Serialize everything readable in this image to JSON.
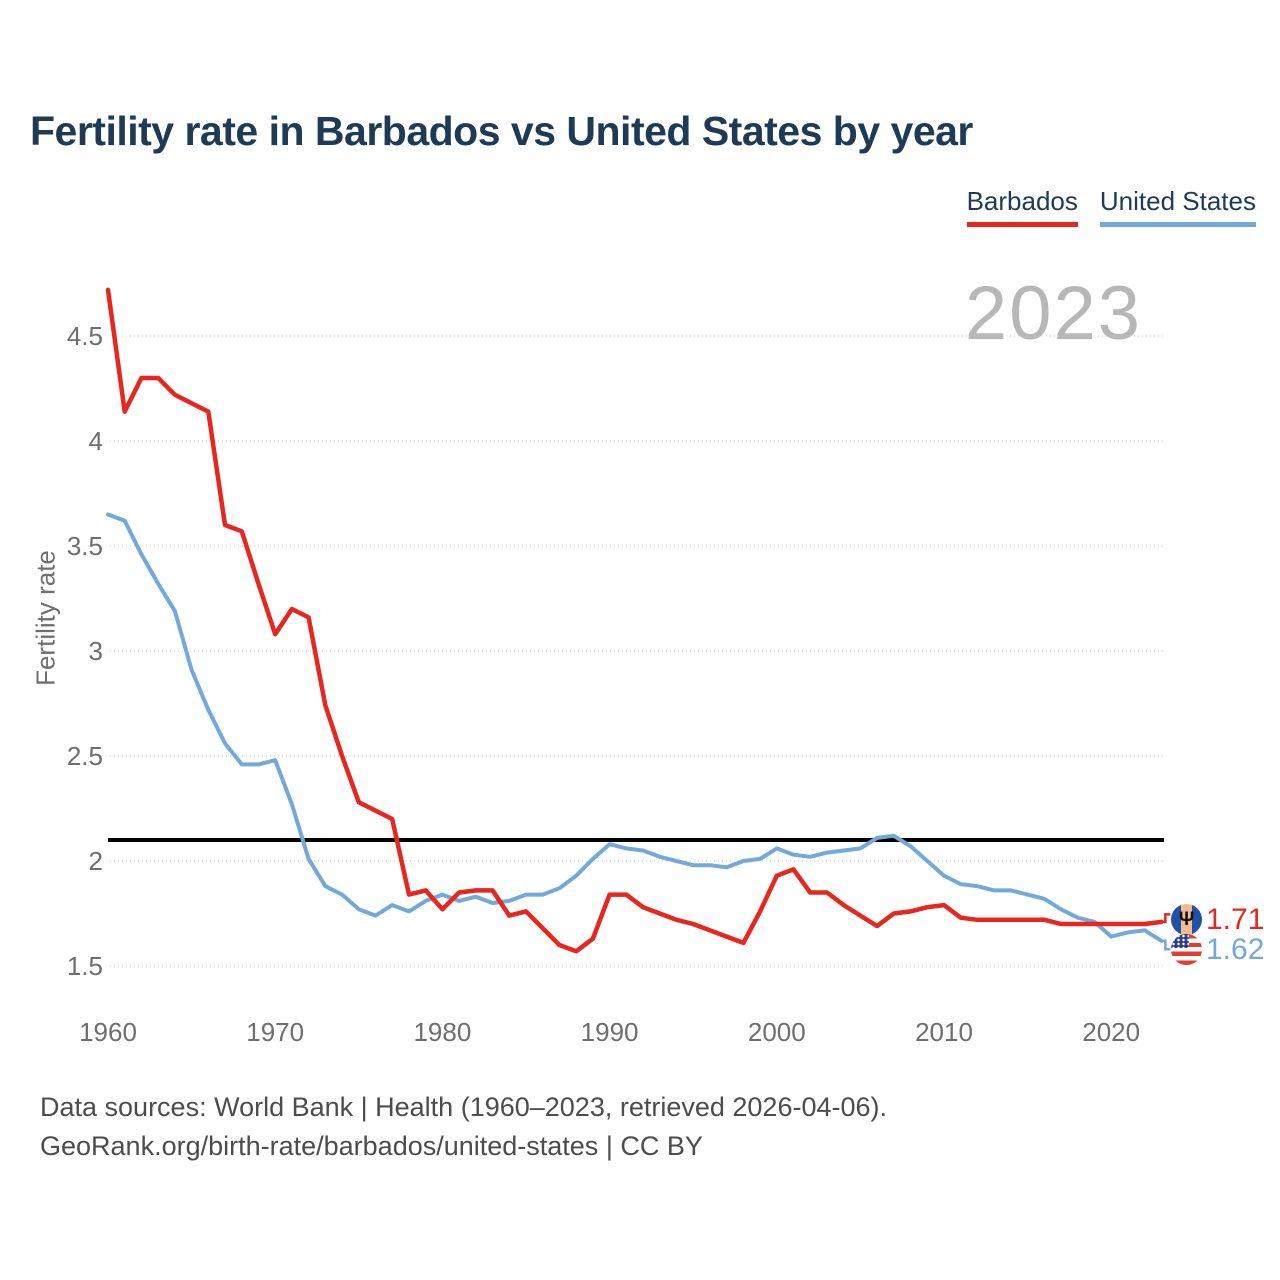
{
  "title": "Fertility rate in Barbados vs United States by year",
  "watermark_year": "2023",
  "footer": {
    "line1": "Data sources: World Bank | Health (1960–2023, retrieved 2026-04-06).",
    "line2": "GeoRank.org/birth-rate/barbados/united-states | CC BY"
  },
  "colors": {
    "barbados": "#e8251f",
    "united_states": "#72a8da",
    "title_text": "#1e3a55",
    "axis_text": "#6e6e6e",
    "watermark": "#b7b7b7",
    "reference_line": "#000000",
    "gridline": "#cccccc"
  },
  "chart_data": {
    "type": "line",
    "title": "Fertility rate in Barbados vs United States by year",
    "xlabel": "",
    "ylabel": "Fertility rate",
    "x_start": 1960,
    "x_end": 2023,
    "xticks": [
      1960,
      1970,
      1980,
      1990,
      2000,
      2010,
      2020
    ],
    "yticks": [
      4.5,
      4,
      3.5,
      3,
      2.5,
      2,
      1.5
    ],
    "ylim": [
      1.3,
      4.75
    ],
    "grid": true,
    "legend_position": "top-right",
    "watermark": "2023",
    "reference_line": {
      "value": 2.1,
      "color": "#000000"
    },
    "series": [
      {
        "name": "Barbados",
        "color": "#e8251f",
        "icon": "barbados-flag-icon",
        "end_value_label": "1.71",
        "values": [
          4.72,
          4.14,
          4.3,
          4.3,
          4.22,
          4.18,
          4.14,
          3.6,
          3.57,
          3.32,
          3.08,
          3.2,
          3.16,
          2.74,
          2.5,
          2.28,
          2.24,
          2.2,
          1.84,
          1.86,
          1.77,
          1.85,
          1.86,
          1.86,
          1.74,
          1.76,
          1.68,
          1.6,
          1.57,
          1.63,
          1.84,
          1.84,
          1.78,
          1.75,
          1.72,
          1.7,
          1.67,
          1.64,
          1.61,
          1.76,
          1.93,
          1.96,
          1.85,
          1.85,
          1.79,
          1.74,
          1.69,
          1.75,
          1.76,
          1.78,
          1.79,
          1.73,
          1.72,
          1.72,
          1.72,
          1.72,
          1.72,
          1.7,
          1.7,
          1.7,
          1.7,
          1.7,
          1.7,
          1.71
        ]
      },
      {
        "name": "United States",
        "color": "#72a8da",
        "icon": "us-flag-icon",
        "end_value_label": "1.62",
        "values": [
          3.65,
          3.62,
          3.46,
          3.32,
          3.19,
          2.91,
          2.72,
          2.56,
          2.46,
          2.46,
          2.48,
          2.27,
          2.01,
          1.88,
          1.84,
          1.77,
          1.74,
          1.79,
          1.76,
          1.81,
          1.84,
          1.81,
          1.83,
          1.8,
          1.81,
          1.84,
          1.84,
          1.87,
          1.93,
          2.01,
          2.08,
          2.06,
          2.05,
          2.02,
          2.0,
          1.98,
          1.98,
          1.97,
          2.0,
          2.01,
          2.06,
          2.03,
          2.02,
          2.04,
          2.05,
          2.06,
          2.11,
          2.12,
          2.07,
          2.0,
          1.93,
          1.89,
          1.88,
          1.86,
          1.86,
          1.84,
          1.82,
          1.77,
          1.73,
          1.71,
          1.64,
          1.66,
          1.67,
          1.62
        ]
      }
    ]
  }
}
